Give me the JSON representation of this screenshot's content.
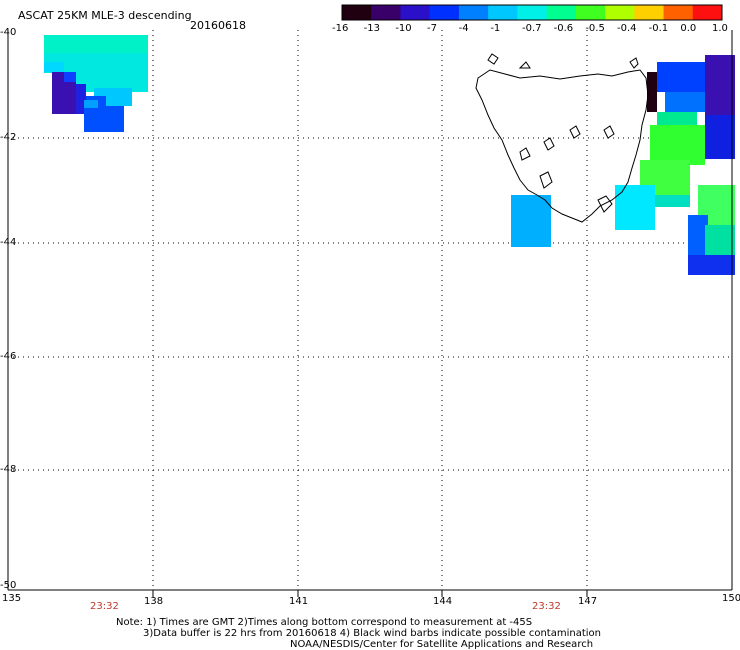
{
  "title": "ASCAT 25KM MLE-3 descending",
  "date": "20160618",
  "colorbar": {
    "labels": [
      "-16",
      "-13",
      "-10",
      "-7",
      "-4",
      "-1",
      "-0.7",
      "-0.6",
      "-0.5",
      "-0.4",
      "-0.1",
      "0.0",
      "1.0"
    ],
    "colors": [
      "#200010",
      "#3a006a",
      "#2a10c8",
      "#0030ff",
      "#0080ff",
      "#00c8ff",
      "#00f0e8",
      "#00ff90",
      "#40ff20",
      "#b0ff00",
      "#ffd000",
      "#ff6000",
      "#ff1010"
    ]
  },
  "axes": {
    "lat_labels": [
      "-40",
      "-42",
      "-44",
      "-46",
      "-48",
      "-50"
    ],
    "lon_labels": [
      "135",
      "138",
      "141",
      "144",
      "147",
      "150"
    ],
    "times": [
      "23:32",
      "23:32"
    ]
  },
  "notes": {
    "line1": "Note: 1) Times are GMT 2)Times along bottom correspond to measurement at -45S",
    "line2": "3)Data buffer is 22 hrs from 20160618 4) Black wind barbs indicate possible contamination",
    "line3": "NOAA/NESDIS/Center for Satellite Applications and Research"
  }
}
